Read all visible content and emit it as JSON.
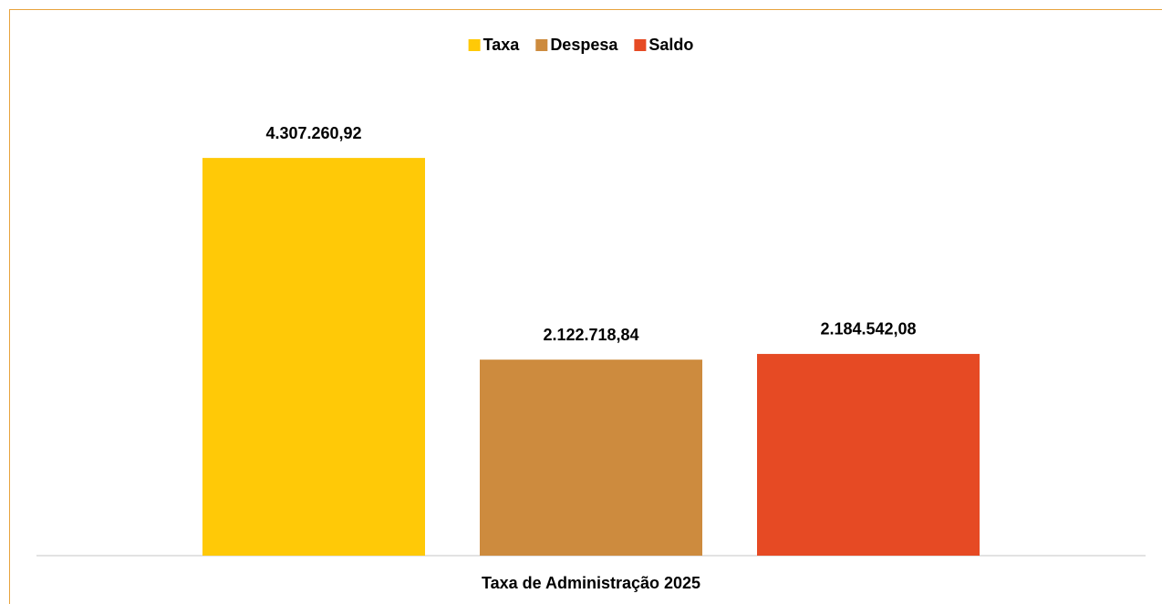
{
  "chart_data": {
    "type": "bar",
    "categories": [
      "Taxa de Administração 2025"
    ],
    "series": [
      {
        "name": "Taxa",
        "color": "#ffc907",
        "values": [
          4307260.92
        ],
        "value_labels": [
          "4.307.260,92"
        ]
      },
      {
        "name": "Despesa",
        "color": "#cd8b3e",
        "values": [
          2122718.84
        ],
        "value_labels": [
          "2.122.718,84"
        ]
      },
      {
        "name": "Saldo",
        "color": "#e64a24",
        "values": [
          2184542.08
        ],
        "value_labels": [
          "2.184.542,08"
        ]
      }
    ],
    "ylim": [
      0,
      5000000
    ],
    "legend": "top"
  }
}
